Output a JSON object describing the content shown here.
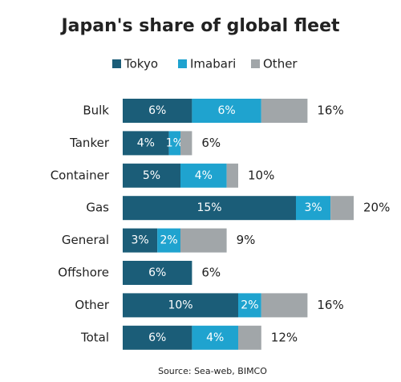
{
  "chart_data": {
    "type": "stacked-bar-horizontal",
    "title": "Japan's share of global fleet",
    "categories": [
      "Bulk",
      "Tanker",
      "Container",
      "Gas",
      "General",
      "Offshore",
      "Other",
      "Total"
    ],
    "series": [
      {
        "name": "Tokyo",
        "color": "#1b5d78",
        "values": [
          6,
          4,
          5,
          15,
          3,
          6,
          10,
          6
        ],
        "value_labels": [
          "6%",
          "4%",
          "5%",
          "15%",
          "3%",
          "6%",
          "10%",
          "6%"
        ]
      },
      {
        "name": "Imabari",
        "color": "#1fa3cf",
        "values": [
          6,
          1,
          4,
          3,
          2,
          0,
          2,
          4
        ],
        "value_labels": [
          "6%",
          "1%",
          "4%",
          "3%",
          "2%",
          null,
          "2%",
          "4%"
        ]
      },
      {
        "name": "Other",
        "color": "#a1a6a9",
        "values": [
          4,
          1,
          1,
          2,
          4,
          0,
          4,
          2
        ]
      }
    ],
    "total_labels": [
      "16%",
      "6%",
      "10%",
      "20%",
      "9%",
      "6%",
      "16%",
      "12%"
    ],
    "source": "Source: Sea-web, BIMCO"
  }
}
